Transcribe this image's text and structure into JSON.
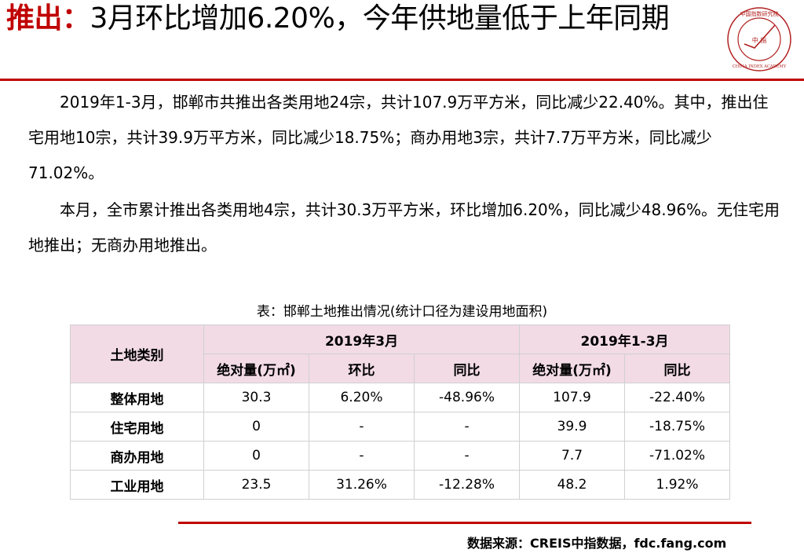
{
  "title": {
    "keyword": "推出：",
    "text": "3月环比增加6.20%，今年供地量低于上年同期"
  },
  "logo": {
    "top_text": "中国指数研究院",
    "center_text": "中 指",
    "bottom_text": "CHINA INDEX ACADEMY"
  },
  "paragraphs": [
    "2019年1-3月，邯郸市共推出各类用地24宗，共计107.9万平方米，同比减少22.40%。其中，推出住宅用地10宗，共计39.9万平方米，同比减少18.75%；商办用地3宗，共计7.7万平方米，同比减少71.02%。",
    "本月，全市累计推出各类用地4宗，共计30.3万平方米，环比增加6.20%，同比减少48.96%。无住宅用地推出；无商办用地推出。"
  ],
  "table": {
    "caption": "表：邯郸土地推出情况(统计口径为建设用地面积)",
    "header": {
      "category": "土地类别",
      "group_month": "2019年3月",
      "group_ytd": "2019年1-3月",
      "col_abs": "绝对量(万㎡)",
      "col_mom": "环比",
      "col_yoy": "同比"
    },
    "rows": [
      {
        "name": "整体用地",
        "m_abs": "30.3",
        "m_mom": "6.20%",
        "m_yoy": "-48.96%",
        "y_abs": "107.9",
        "y_yoy": "-22.40%"
      },
      {
        "name": "住宅用地",
        "m_abs": "0",
        "m_mom": "-",
        "m_yoy": "-",
        "y_abs": "39.9",
        "y_yoy": "-18.75%"
      },
      {
        "name": "商办用地",
        "m_abs": "0",
        "m_mom": "-",
        "m_yoy": "-",
        "y_abs": "7.7",
        "y_yoy": "-71.02%"
      },
      {
        "name": "工业用地",
        "m_abs": "23.5",
        "m_mom": "31.26%",
        "m_yoy": "-12.28%",
        "y_abs": "48.2",
        "y_yoy": "1.92%"
      }
    ]
  },
  "source": "数据来源：CREIS中指数据，fdc.fang.com",
  "colors": {
    "accent": "#c00000",
    "header_bg": "#f2dbe5",
    "border": "#d0d0d0"
  }
}
